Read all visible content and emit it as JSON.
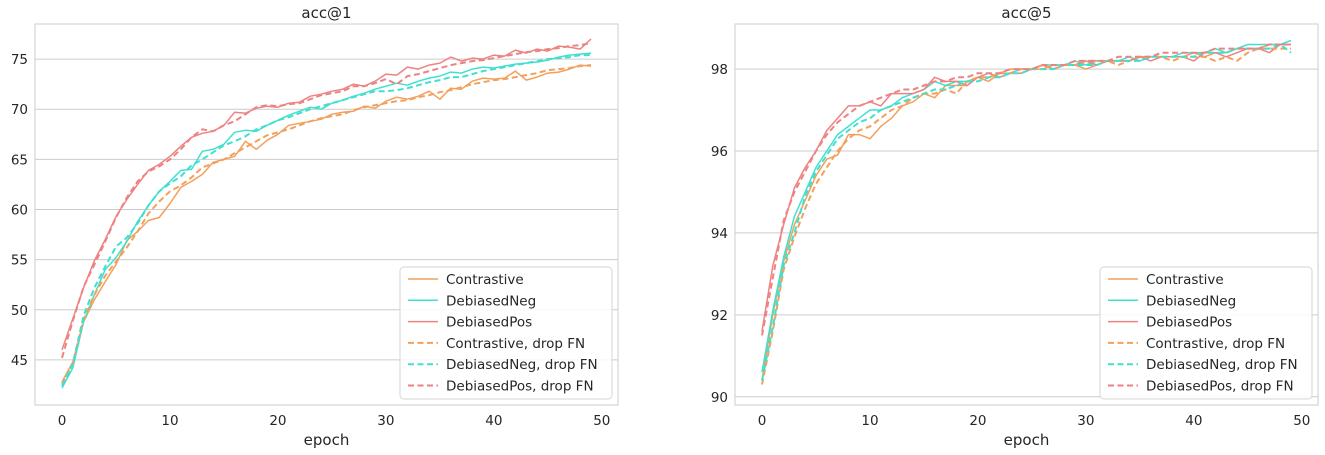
{
  "chart_data": [
    {
      "type": "line",
      "title": "acc@1",
      "xlabel": "epoch",
      "ylabel": "",
      "xlim": [
        -2.5,
        51.5
      ],
      "ylim": [
        40.5,
        78.5
      ],
      "xticks": [
        0,
        10,
        20,
        30,
        40,
        50
      ],
      "yticks": [
        45,
        50,
        55,
        60,
        65,
        70,
        75
      ],
      "grid": "horizontal",
      "legend": "lower-right",
      "x": [
        0,
        1,
        2,
        3,
        4,
        5,
        6,
        7,
        8,
        9,
        10,
        11,
        12,
        13,
        14,
        15,
        16,
        17,
        18,
        19,
        20,
        21,
        22,
        23,
        24,
        25,
        26,
        27,
        28,
        29,
        30,
        31,
        32,
        33,
        34,
        35,
        36,
        37,
        38,
        39,
        40,
        41,
        42,
        43,
        44,
        45,
        46,
        47,
        48,
        49
      ],
      "series": [
        {
          "name": "Contrastive",
          "color": "#f2a05c",
          "dash": "solid",
          "values": [
            42.8,
            44.8,
            48.8,
            51.0,
            52.8,
            54.5,
            56.9,
            57.8,
            58.9,
            59.2,
            60.6,
            62.2,
            62.8,
            63.5,
            64.7,
            65.0,
            65.3,
            66.8,
            66.0,
            66.9,
            67.5,
            68.4,
            68.6,
            68.8,
            69.0,
            69.5,
            69.7,
            69.8,
            70.3,
            70.1,
            70.8,
            71.2,
            71.0,
            71.3,
            71.8,
            71.0,
            72.1,
            72.0,
            72.8,
            73.1,
            73.0,
            73.1,
            73.8,
            72.9,
            73.2,
            73.6,
            73.7,
            74.0,
            74.4,
            74.3
          ]
        },
        {
          "name": "DebiasedNeg",
          "color": "#40e0d0",
          "dash": "solid",
          "values": [
            42.2,
            44.2,
            48.8,
            51.5,
            54.0,
            55.2,
            56.8,
            58.8,
            60.4,
            61.8,
            62.8,
            63.9,
            64.0,
            65.8,
            66.0,
            66.5,
            67.7,
            67.9,
            67.8,
            68.4,
            68.9,
            69.4,
            69.8,
            70.2,
            70.0,
            70.6,
            70.9,
            71.3,
            71.6,
            72.0,
            72.3,
            72.6,
            72.4,
            72.8,
            73.1,
            73.3,
            73.7,
            73.6,
            74.0,
            74.2,
            74.1,
            74.3,
            74.5,
            74.6,
            74.7,
            74.9,
            75.2,
            75.4,
            75.5,
            75.6
          ]
        },
        {
          "name": "DebiasedPos",
          "color": "#ee8282",
          "dash": "solid",
          "values": [
            46.0,
            49.1,
            52.2,
            54.9,
            57.0,
            59.3,
            61.0,
            62.5,
            63.9,
            64.5,
            65.3,
            66.3,
            67.2,
            67.6,
            67.8,
            68.4,
            69.7,
            69.6,
            70.1,
            70.3,
            70.2,
            70.6,
            70.7,
            71.3,
            71.5,
            71.8,
            72.0,
            72.5,
            72.3,
            72.8,
            73.5,
            73.4,
            74.2,
            74.0,
            74.4,
            74.6,
            75.2,
            74.8,
            75.1,
            75.0,
            75.4,
            75.3,
            75.9,
            75.6,
            76.0,
            75.8,
            76.3,
            76.2,
            76.0,
            77.0
          ]
        },
        {
          "name": "Contrastive, drop FN",
          "color": "#f2a05c",
          "dash": "dashed",
          "values": [
            42.6,
            44.6,
            49.0,
            51.5,
            53.4,
            54.8,
            56.2,
            57.8,
            59.6,
            60.8,
            61.8,
            62.4,
            63.2,
            64.2,
            64.6,
            65.0,
            65.6,
            66.2,
            66.8,
            67.4,
            67.7,
            68.0,
            68.4,
            68.8,
            69.1,
            69.3,
            69.5,
            69.9,
            70.2,
            70.4,
            70.6,
            70.8,
            70.9,
            71.2,
            71.4,
            71.7,
            71.9,
            72.2,
            72.5,
            72.7,
            72.9,
            73.0,
            73.2,
            73.4,
            73.6,
            73.9,
            74.0,
            74.1,
            74.3,
            74.4
          ]
        },
        {
          "name": "DebiasedNeg, drop FN",
          "color": "#40e0d0",
          "dash": "dashed",
          "values": [
            42.4,
            44.6,
            49.4,
            52.2,
            54.3,
            56.3,
            57.2,
            58.6,
            60.4,
            61.8,
            62.6,
            63.3,
            64.4,
            65.0,
            65.7,
            66.4,
            66.8,
            67.3,
            68.0,
            68.4,
            68.9,
            69.2,
            69.6,
            70.0,
            70.3,
            70.6,
            70.9,
            71.2,
            71.5,
            71.8,
            71.8,
            71.9,
            72.1,
            72.4,
            72.7,
            72.9,
            73.2,
            73.2,
            73.5,
            73.8,
            74.0,
            74.2,
            74.4,
            74.6,
            74.8,
            75.0,
            75.1,
            75.2,
            75.4,
            75.4
          ]
        },
        {
          "name": "DebiasedPos, drop FN",
          "color": "#ee8282",
          "dash": "dashed",
          "values": [
            45.2,
            48.9,
            52.3,
            54.5,
            56.8,
            59.2,
            61.2,
            62.8,
            63.8,
            64.3,
            65.0,
            66.0,
            67.2,
            68.0,
            67.8,
            68.4,
            68.8,
            69.5,
            70.2,
            70.4,
            70.3,
            70.5,
            70.6,
            71.0,
            71.4,
            71.6,
            71.8,
            72.3,
            72.3,
            72.6,
            73.0,
            72.5,
            73.3,
            73.5,
            73.8,
            74.1,
            74.4,
            74.6,
            74.8,
            74.9,
            75.1,
            75.3,
            75.5,
            75.7,
            75.8,
            76.0,
            76.1,
            76.3,
            76.4,
            76.6
          ]
        }
      ]
    },
    {
      "type": "line",
      "title": "acc@5",
      "xlabel": "epoch",
      "ylabel": "",
      "xlim": [
        -2.5,
        51.5
      ],
      "ylim": [
        89.8,
        99.1
      ],
      "xticks": [
        0,
        10,
        20,
        30,
        40,
        50
      ],
      "yticks": [
        90,
        92,
        94,
        96,
        98
      ],
      "grid": "horizontal",
      "legend": "lower-right",
      "x": [
        0,
        1,
        2,
        3,
        4,
        5,
        6,
        7,
        8,
        9,
        10,
        11,
        12,
        13,
        14,
        15,
        16,
        17,
        18,
        19,
        20,
        21,
        22,
        23,
        24,
        25,
        26,
        27,
        28,
        29,
        30,
        31,
        32,
        33,
        34,
        35,
        36,
        37,
        38,
        39,
        40,
        41,
        42,
        43,
        44,
        45,
        46,
        47,
        48,
        49
      ],
      "series": [
        {
          "name": "Contrastive",
          "color": "#f2a05c",
          "dash": "solid",
          "values": [
            90.4,
            92.0,
            93.3,
            94.2,
            94.8,
            95.4,
            95.8,
            95.9,
            96.4,
            96.4,
            96.3,
            96.6,
            96.8,
            97.1,
            97.2,
            97.4,
            97.3,
            97.6,
            97.6,
            97.6,
            97.8,
            97.7,
            97.9,
            98.0,
            98.0,
            98.0,
            98.0,
            98.1,
            98.1,
            98.1,
            98.0,
            98.1,
            98.2,
            98.2,
            98.2,
            98.3,
            98.3,
            98.3,
            98.3,
            98.3,
            98.4,
            98.3,
            98.4,
            98.4,
            98.5,
            98.5,
            98.5,
            98.6,
            98.6,
            98.6
          ]
        },
        {
          "name": "DebiasedNeg",
          "color": "#40e0d0",
          "dash": "solid",
          "values": [
            90.6,
            92.1,
            93.4,
            94.4,
            95.0,
            95.6,
            96.0,
            96.4,
            96.6,
            96.8,
            97.0,
            97.0,
            97.1,
            97.3,
            97.4,
            97.5,
            97.7,
            97.6,
            97.7,
            97.7,
            97.8,
            97.8,
            97.9,
            97.9,
            98.0,
            98.0,
            98.1,
            98.1,
            98.1,
            98.2,
            98.1,
            98.2,
            98.2,
            98.2,
            98.3,
            98.2,
            98.3,
            98.3,
            98.3,
            98.4,
            98.4,
            98.4,
            98.5,
            98.4,
            98.5,
            98.6,
            98.6,
            98.6,
            98.6,
            98.7
          ]
        },
        {
          "name": "DebiasedPos",
          "color": "#ee8282",
          "dash": "solid",
          "values": [
            91.6,
            93.2,
            94.2,
            95.1,
            95.6,
            96.0,
            96.5,
            96.8,
            97.1,
            97.1,
            97.2,
            97.1,
            97.4,
            97.4,
            97.4,
            97.5,
            97.8,
            97.7,
            97.7,
            97.6,
            97.8,
            97.9,
            97.8,
            97.9,
            97.9,
            98.0,
            98.1,
            98.0,
            98.1,
            98.1,
            98.2,
            98.1,
            98.2,
            98.2,
            98.2,
            98.3,
            98.2,
            98.3,
            98.3,
            98.3,
            98.2,
            98.4,
            98.4,
            98.3,
            98.4,
            98.5,
            98.5,
            98.4,
            98.6,
            98.6
          ]
        },
        {
          "name": "Contrastive, drop FN",
          "color": "#f2a05c",
          "dash": "dashed",
          "values": [
            90.3,
            91.6,
            93.1,
            93.9,
            94.6,
            95.2,
            95.6,
            96.0,
            96.3,
            96.5,
            96.6,
            96.8,
            97.0,
            97.1,
            97.3,
            97.4,
            97.4,
            97.5,
            97.4,
            97.7,
            97.8,
            97.8,
            97.9,
            97.9,
            98.0,
            98.0,
            98.1,
            98.0,
            98.1,
            98.1,
            98.2,
            98.2,
            98.2,
            98.1,
            98.2,
            98.3,
            98.3,
            98.3,
            98.2,
            98.3,
            98.3,
            98.3,
            98.2,
            98.3,
            98.2,
            98.4,
            98.5,
            98.5,
            98.5,
            98.5
          ]
        },
        {
          "name": "DebiasedNeg, drop FN",
          "color": "#40e0d0",
          "dash": "dashed",
          "values": [
            90.4,
            91.7,
            93.2,
            94.0,
            94.9,
            95.5,
            95.9,
            96.3,
            96.5,
            96.7,
            96.8,
            97.0,
            97.1,
            97.2,
            97.3,
            97.4,
            97.5,
            97.5,
            97.6,
            97.7,
            97.7,
            97.8,
            97.8,
            97.9,
            97.9,
            98.0,
            98.0,
            98.0,
            98.1,
            98.1,
            98.1,
            98.1,
            98.2,
            98.2,
            98.2,
            98.2,
            98.3,
            98.3,
            98.3,
            98.3,
            98.3,
            98.4,
            98.4,
            98.4,
            98.5,
            98.5,
            98.5,
            98.5,
            98.6,
            98.4
          ]
        },
        {
          "name": "DebiasedPos, drop FN",
          "color": "#ee8282",
          "dash": "dashed",
          "values": [
            91.5,
            92.9,
            94.3,
            95.0,
            95.5,
            96.0,
            96.4,
            96.7,
            96.9,
            97.1,
            97.2,
            97.3,
            97.4,
            97.5,
            97.5,
            97.6,
            97.7,
            97.7,
            97.8,
            97.8,
            97.9,
            97.9,
            97.9,
            98.0,
            98.0,
            98.0,
            98.1,
            98.1,
            98.1,
            98.2,
            98.2,
            98.2,
            98.2,
            98.3,
            98.3,
            98.3,
            98.3,
            98.4,
            98.4,
            98.4,
            98.4,
            98.4,
            98.5,
            98.5,
            98.5,
            98.5,
            98.5,
            98.6,
            98.6,
            98.6
          ]
        }
      ]
    }
  ]
}
